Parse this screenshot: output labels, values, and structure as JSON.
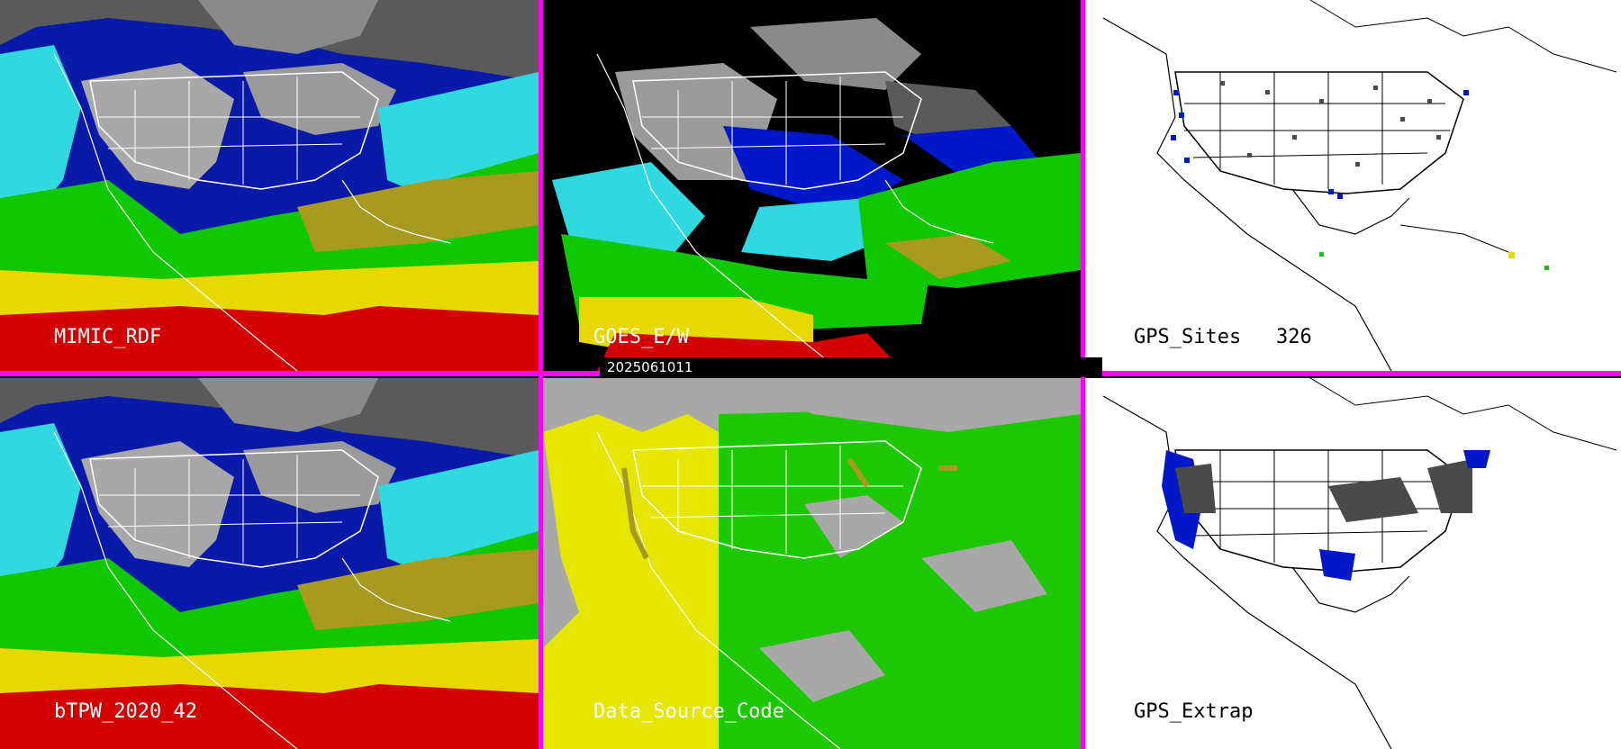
{
  "panels": {
    "mimic": {
      "label": "MIMIC_RDF"
    },
    "goes": {
      "label": "GOES_E/W"
    },
    "gps_sites": {
      "label": "GPS_Sites",
      "count": "326"
    },
    "btpw": {
      "label": "bTPW_2020_42"
    },
    "data_source": {
      "label": "Data_Source_Code"
    },
    "gps_extrap": {
      "label": "GPS_Extrap"
    }
  },
  "timestamp": "2025061011",
  "colors": {
    "divider": "#ff00ff",
    "tpw_red": "#d40000",
    "tpw_yellow": "#e8d800",
    "tpw_olive": "#a89a20",
    "tpw_green": "#10c800",
    "tpw_cyan": "#30d8e0",
    "tpw_blue": "#0018c8",
    "tpw_navy": "#001070",
    "tpw_gray": "#9a9a9a",
    "source_gray": "#a8a8a8",
    "source_yellow": "#e6e600",
    "source_green": "#1ec800"
  }
}
